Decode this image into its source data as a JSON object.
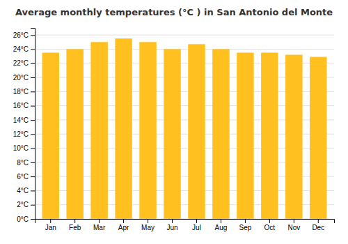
{
  "chart_data": {
    "type": "bar",
    "title": "Average monthly temperatures (°C ) in San Antonio del Monte",
    "categories": [
      "Jan",
      "Feb",
      "Mar",
      "Apr",
      "May",
      "Jun",
      "Jul",
      "Aug",
      "Sep",
      "Oct",
      "Nov",
      "Dec"
    ],
    "values": [
      23.5,
      24.0,
      25.0,
      25.5,
      25.0,
      24.0,
      24.7,
      24.0,
      23.5,
      23.5,
      23.2,
      22.9
    ],
    "color": "#FFC020",
    "ylim": [
      0,
      27
    ],
    "yticks": [
      {
        "value": 0,
        "label": "0°C"
      },
      {
        "value": 2,
        "label": "2°C"
      },
      {
        "value": 4,
        "label": "4°C"
      },
      {
        "value": 6,
        "label": "6°C"
      },
      {
        "value": 8,
        "label": "8°C"
      },
      {
        "value": 10,
        "label": "10°C"
      },
      {
        "value": 12,
        "label": "12°C"
      },
      {
        "value": 14,
        "label": "14°C"
      },
      {
        "value": 16,
        "label": "16°C"
      },
      {
        "value": 18,
        "label": "18°C"
      },
      {
        "value": 20,
        "label": "20°C"
      },
      {
        "value": 22,
        "label": "22°C"
      },
      {
        "value": 24,
        "label": "24°C"
      },
      {
        "value": 26,
        "label": "26°C"
      }
    ],
    "grid": true
  }
}
